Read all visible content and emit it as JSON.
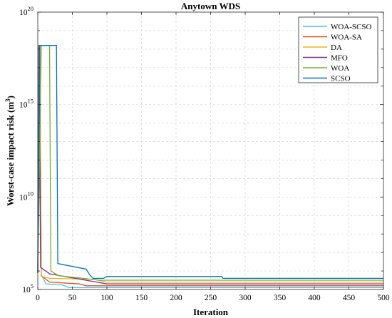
{
  "chart_data": {
    "type": "line",
    "title": "Anytown WDS",
    "xlabel": "Iteration",
    "ylabel": "Worst-case impact risk (m",
    "ylabel_sup": "3",
    "ylabel_close": ")",
    "xlim": [
      0,
      500
    ],
    "ylim_log10": [
      5,
      20
    ],
    "y_scale": "log",
    "grid": true,
    "legend_position": "top-right",
    "x_ticks": [
      "0",
      "50",
      "100",
      "150",
      "200",
      "250",
      "300",
      "350",
      "400",
      "450",
      "500"
    ],
    "y_ticks": [
      {
        "base": "10",
        "exp": "5"
      },
      {
        "base": "10",
        "exp": "10"
      },
      {
        "base": "10",
        "exp": "15"
      },
      {
        "base": "10",
        "exp": "20"
      }
    ],
    "series": [
      {
        "name": "WOA-SCSO",
        "color": "#4dbeee",
        "points_log10": [
          [
            0,
            5.9
          ],
          [
            1,
            18.2
          ],
          [
            3,
            18.2
          ],
          [
            5,
            5.8
          ],
          [
            12,
            5.3
          ],
          [
            35,
            5.25
          ],
          [
            45,
            5.1
          ],
          [
            500,
            5.1
          ]
        ]
      },
      {
        "name": "WOA-SA",
        "color": "#d95319",
        "points_log10": [
          [
            0,
            5.9
          ],
          [
            1,
            18.2
          ],
          [
            3,
            18.2
          ],
          [
            5,
            5.75
          ],
          [
            17,
            5.4
          ],
          [
            60,
            5.3
          ],
          [
            70,
            5.2
          ],
          [
            500,
            5.2
          ]
        ]
      },
      {
        "name": "DA",
        "color": "#edb120",
        "points_log10": [
          [
            0,
            5.9
          ],
          [
            1,
            18.2
          ],
          [
            3,
            18.2
          ],
          [
            5,
            5.7
          ],
          [
            18,
            5.6
          ],
          [
            80,
            5.55
          ],
          [
            100,
            5.4
          ],
          [
            500,
            5.4
          ]
        ]
      },
      {
        "name": "MFO",
        "color": "#7e2f8e",
        "points_log10": [
          [
            0,
            5.9
          ],
          [
            2,
            18.2
          ],
          [
            4,
            6.2
          ],
          [
            17,
            5.85
          ],
          [
            100,
            5.3
          ],
          [
            500,
            5.3
          ]
        ]
      },
      {
        "name": "WOA",
        "color": "#77ac30",
        "points_log10": [
          [
            0,
            5.9
          ],
          [
            5,
            18.2
          ],
          [
            17,
            18.2
          ],
          [
            19,
            6.0
          ],
          [
            30,
            5.75
          ],
          [
            90,
            5.5
          ],
          [
            500,
            5.5
          ]
        ]
      },
      {
        "name": "SCSO",
        "color": "#0072bd",
        "points_log10": [
          [
            0,
            5.9
          ],
          [
            3,
            18.2
          ],
          [
            27,
            18.2
          ],
          [
            29,
            6.4
          ],
          [
            70,
            6.1
          ],
          [
            75,
            5.8
          ],
          [
            80,
            5.6
          ],
          [
            95,
            5.6
          ],
          [
            100,
            5.7
          ],
          [
            266,
            5.7
          ],
          [
            268,
            5.6
          ],
          [
            500,
            5.6
          ]
        ]
      }
    ]
  }
}
